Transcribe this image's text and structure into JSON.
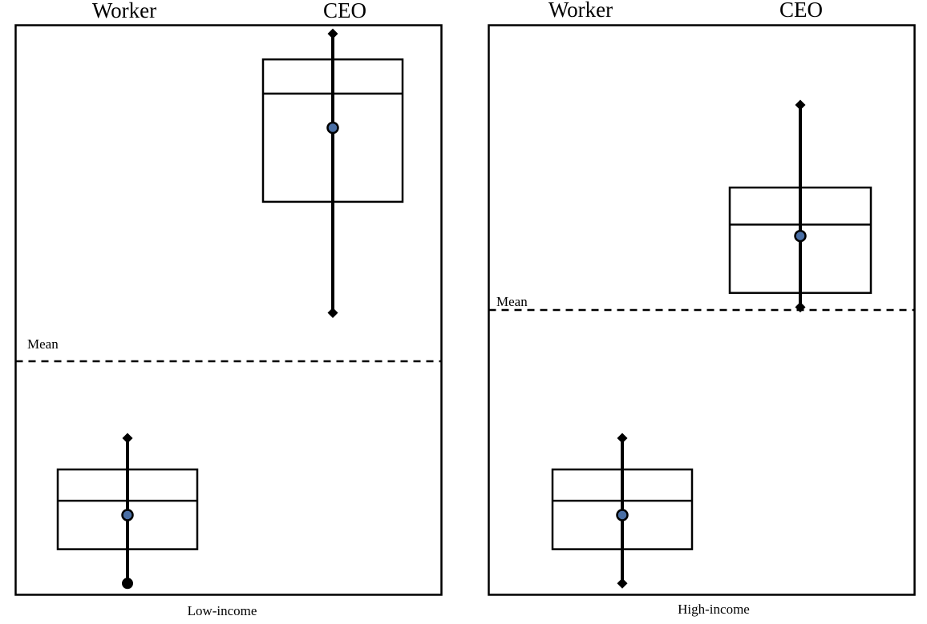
{
  "chart_data": [
    {
      "type": "box",
      "panel": "Low-income",
      "caption": "Low-income",
      "column_labels": [
        "Worker",
        "CEO"
      ],
      "mean_line_label": "Mean",
      "mean_line_value": 0.41,
      "y_range": [
        0,
        1
      ],
      "boxes": [
        {
          "name": "Worker",
          "whisker_top": 0.275,
          "q3": 0.22,
          "median": 0.165,
          "mean": 0.14,
          "q1": 0.08,
          "whisker_bottom": 0.02,
          "whisker_top_marker": "diamond",
          "whisker_bottom_marker": "circle"
        },
        {
          "name": "CEO",
          "whisker_top": 0.985,
          "q3": 0.94,
          "median": 0.88,
          "mean": 0.82,
          "q1": 0.69,
          "whisker_bottom": 0.495,
          "whisker_top_marker": "diamond",
          "whisker_bottom_marker": "diamond"
        }
      ]
    },
    {
      "type": "box",
      "panel": "High-income",
      "caption": "High-income",
      "column_labels": [
        "Worker",
        "CEO"
      ],
      "mean_line_label": "Mean",
      "mean_line_value": 0.5,
      "y_range": [
        0,
        1
      ],
      "boxes": [
        {
          "name": "Worker",
          "whisker_top": 0.275,
          "q3": 0.22,
          "median": 0.165,
          "mean": 0.14,
          "q1": 0.08,
          "whisker_bottom": 0.02,
          "whisker_top_marker": "diamond",
          "whisker_bottom_marker": "diamond"
        },
        {
          "name": "CEO",
          "whisker_top": 0.86,
          "q3": 0.715,
          "median": 0.65,
          "mean": 0.63,
          "q1": 0.53,
          "whisker_bottom": 0.505,
          "whisker_top_marker": "diamond",
          "whisker_bottom_marker": "diamond"
        }
      ]
    }
  ],
  "colors": {
    "frame": "#000000",
    "mean_dot_fill": "#4a6fa5"
  }
}
